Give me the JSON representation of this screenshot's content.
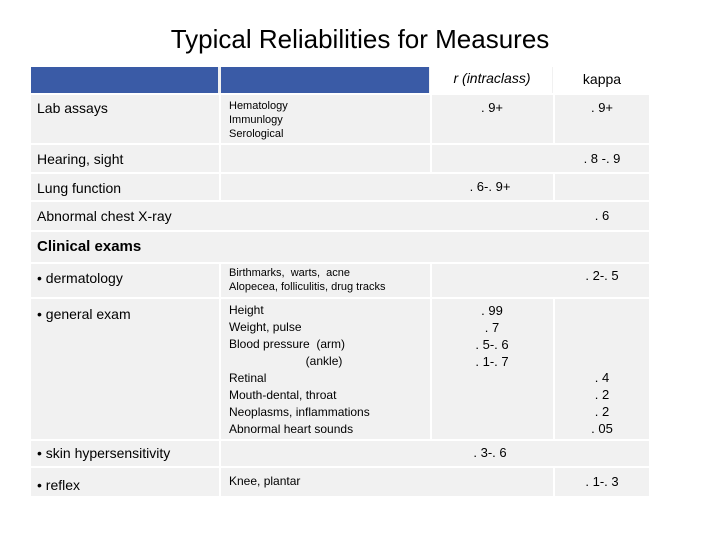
{
  "title": "Typical Reliabilities for Measures",
  "headers": {
    "col_r": "r (intraclass)",
    "col_kappa": "kappa"
  },
  "rows": {
    "lab": {
      "label": "Lab assays",
      "detail": "Hematology\nImmunlogy\nSerological",
      "r": ". 9+",
      "kappa": ". 9+"
    },
    "hearing": {
      "label": "Hearing, sight",
      "kappa": ". 8 -. 9"
    },
    "lung": {
      "label": "Lung function",
      "both": ". 6-. 9+"
    },
    "xray": {
      "label": "Abnormal chest X-ray",
      "kappa": ". 6"
    },
    "clinical": {
      "label": "Clinical exams"
    },
    "derm": {
      "label": "• dermatology",
      "detail": "Birthmarks,  warts,  acne\nAlopecea, folliculitis, drug tracks",
      "kappa": ". 2-. 5"
    },
    "general": {
      "label": "• general exam",
      "detail": "Height\nWeight, pulse\nBlood pressure  (arm)\n                       (ankle)\nRetinal\nMouth-dental, throat\nNeoplasms, inflammations\nAbnormal heart sounds",
      "r": ". 99\n. 7\n. 5-. 6\n. 1-. 7",
      "kappa": ". 4\n. 2\n. 2\n. 05"
    },
    "skin": {
      "label": "• skin hypersensitivity",
      "both": ". 3-. 6"
    },
    "reflex": {
      "label": "• reflex",
      "detail": "Knee, plantar",
      "kappa": ". 1-. 3"
    }
  }
}
